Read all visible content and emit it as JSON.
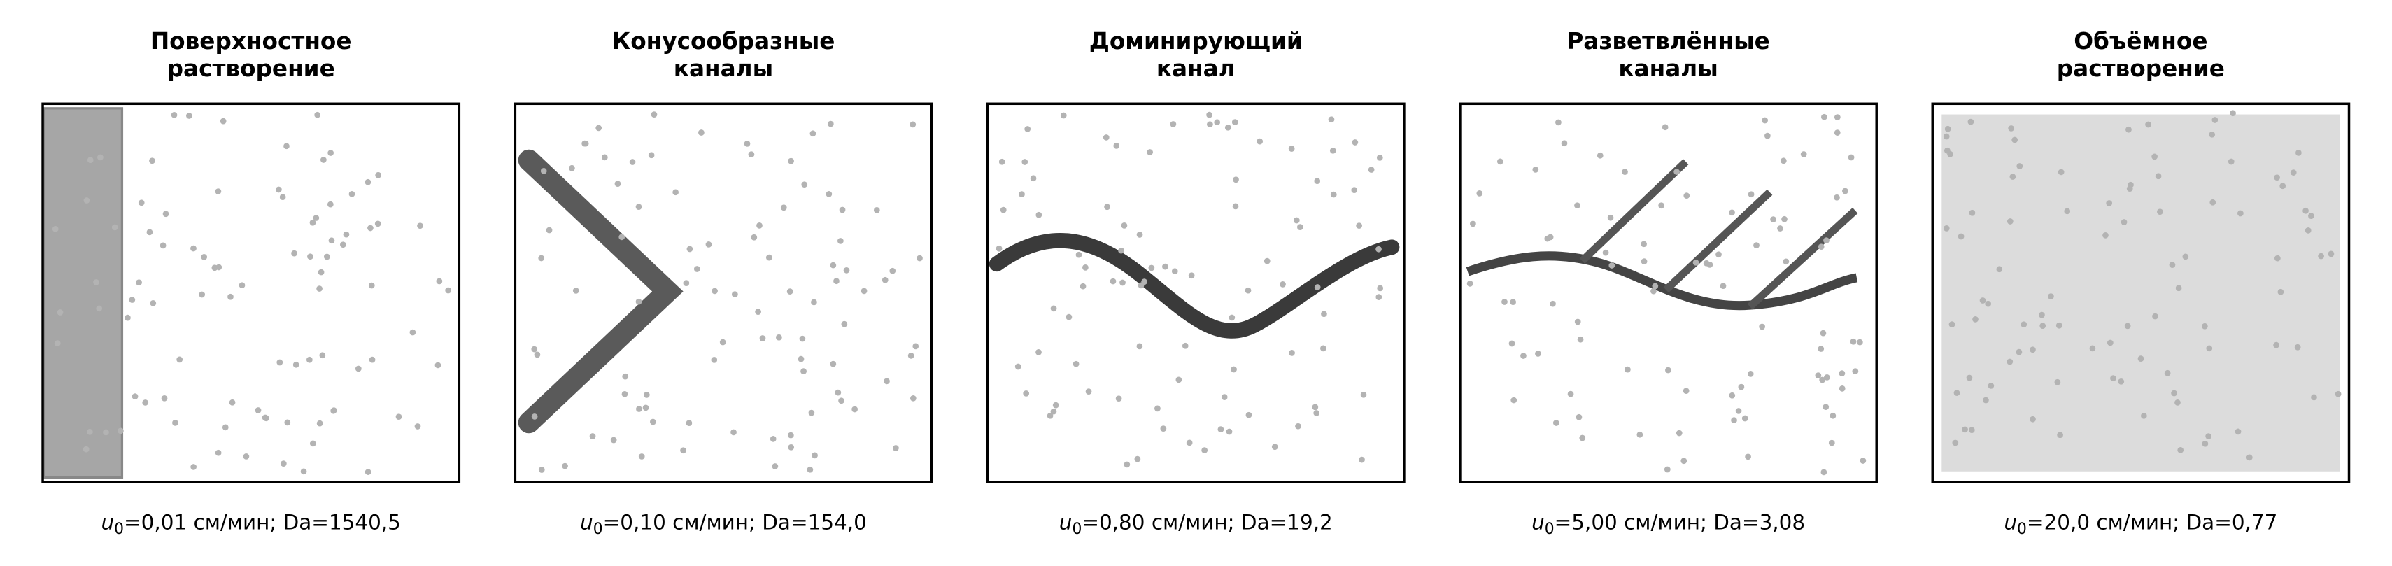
{
  "panels": [
    {
      "title_lines": [
        "Поверхностное",
        "растворение"
      ],
      "caption": {
        "symbol": "u",
        "subscript": "0",
        "text": "=0,01 см/мин; Da=1540,5"
      }
    },
    {
      "title_lines": [
        "Конусообразные",
        "каналы"
      ],
      "caption": {
        "symbol": "u",
        "subscript": "0",
        "text": "=0,10 см/мин; Da=154,0"
      }
    },
    {
      "title_lines": [
        "Доминирующий",
        "канал"
      ],
      "caption": {
        "symbol": "u",
        "subscript": "0",
        "text": "=0,80 см/мин; Da=19,2"
      }
    },
    {
      "title_lines": [
        "Разветвлённые",
        "каналы"
      ],
      "caption": {
        "symbol": "u",
        "subscript": "0",
        "text": "=5,00 см/мин; Da=3,08"
      }
    },
    {
      "title_lines": [
        "Объёмное",
        "растворение"
      ],
      "caption": {
        "symbol": "u",
        "subscript": "0",
        "text": "=20,0 см/мин; Da=0,77"
      }
    }
  ]
}
